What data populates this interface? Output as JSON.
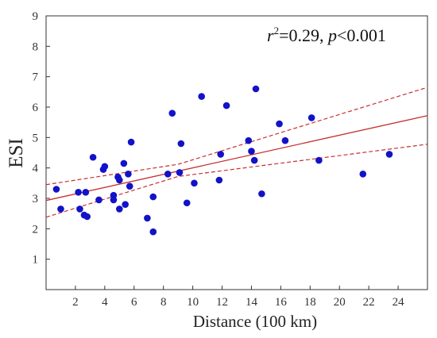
{
  "chart_data": {
    "type": "scatter",
    "xlabel": "Distance (100 km)",
    "ylabel": "ESI",
    "xlim": [
      0,
      26
    ],
    "ylim": [
      0,
      9
    ],
    "xticks": [
      2,
      4,
      6,
      8,
      10,
      12,
      14,
      16,
      18,
      20,
      22,
      24
    ],
    "yticks": [
      1,
      2,
      3,
      4,
      5,
      6,
      7,
      8,
      9
    ],
    "grid": false,
    "annotation": {
      "r_symbol": "r",
      "r_exp": "2",
      "r_value": "=0.29, ",
      "p_symbol": "p",
      "p_value": "<0.001"
    },
    "points": [
      {
        "x": 0.7,
        "y": 3.3
      },
      {
        "x": 1.0,
        "y": 2.65
      },
      {
        "x": 2.2,
        "y": 3.2
      },
      {
        "x": 2.3,
        "y": 2.65
      },
      {
        "x": 2.6,
        "y": 2.45
      },
      {
        "x": 2.7,
        "y": 3.2
      },
      {
        "x": 2.8,
        "y": 2.4
      },
      {
        "x": 3.2,
        "y": 4.35
      },
      {
        "x": 3.6,
        "y": 2.95
      },
      {
        "x": 3.9,
        "y": 3.95
      },
      {
        "x": 4.0,
        "y": 4.05
      },
      {
        "x": 4.6,
        "y": 3.1
      },
      {
        "x": 4.6,
        "y": 2.95
      },
      {
        "x": 4.9,
        "y": 3.7
      },
      {
        "x": 5.0,
        "y": 3.6
      },
      {
        "x": 5.0,
        "y": 2.65
      },
      {
        "x": 5.3,
        "y": 4.15
      },
      {
        "x": 5.4,
        "y": 2.8
      },
      {
        "x": 5.6,
        "y": 3.8
      },
      {
        "x": 5.7,
        "y": 3.4
      },
      {
        "x": 5.8,
        "y": 4.85
      },
      {
        "x": 6.9,
        "y": 2.35
      },
      {
        "x": 7.3,
        "y": 3.05
      },
      {
        "x": 7.3,
        "y": 1.9
      },
      {
        "x": 8.3,
        "y": 3.8
      },
      {
        "x": 8.6,
        "y": 5.8
      },
      {
        "x": 9.1,
        "y": 3.85
      },
      {
        "x": 9.2,
        "y": 4.8
      },
      {
        "x": 9.6,
        "y": 2.85
      },
      {
        "x": 10.1,
        "y": 3.5
      },
      {
        "x": 10.6,
        "y": 6.35
      },
      {
        "x": 11.8,
        "y": 3.6
      },
      {
        "x": 11.9,
        "y": 4.45
      },
      {
        "x": 12.3,
        "y": 6.05
      },
      {
        "x": 13.8,
        "y": 4.9
      },
      {
        "x": 14.0,
        "y": 4.55
      },
      {
        "x": 14.2,
        "y": 4.25
      },
      {
        "x": 14.3,
        "y": 6.6
      },
      {
        "x": 14.7,
        "y": 3.15
      },
      {
        "x": 15.9,
        "y": 5.45
      },
      {
        "x": 16.3,
        "y": 4.9
      },
      {
        "x": 18.1,
        "y": 5.65
      },
      {
        "x": 18.6,
        "y": 4.25
      },
      {
        "x": 21.6,
        "y": 3.8
      },
      {
        "x": 23.4,
        "y": 4.45
      }
    ],
    "regression": {
      "x": [
        0,
        26
      ],
      "y": [
        2.93,
        5.72
      ]
    },
    "confidence_lower": {
      "x": [
        0,
        9,
        26
      ],
      "y": [
        2.38,
        3.72,
        4.78
      ]
    },
    "confidence_upper": {
      "x": [
        0,
        9,
        26
      ],
      "y": [
        3.45,
        4.12,
        6.65
      ]
    },
    "point_color": "#1212c8",
    "line_color": "#c83030"
  }
}
